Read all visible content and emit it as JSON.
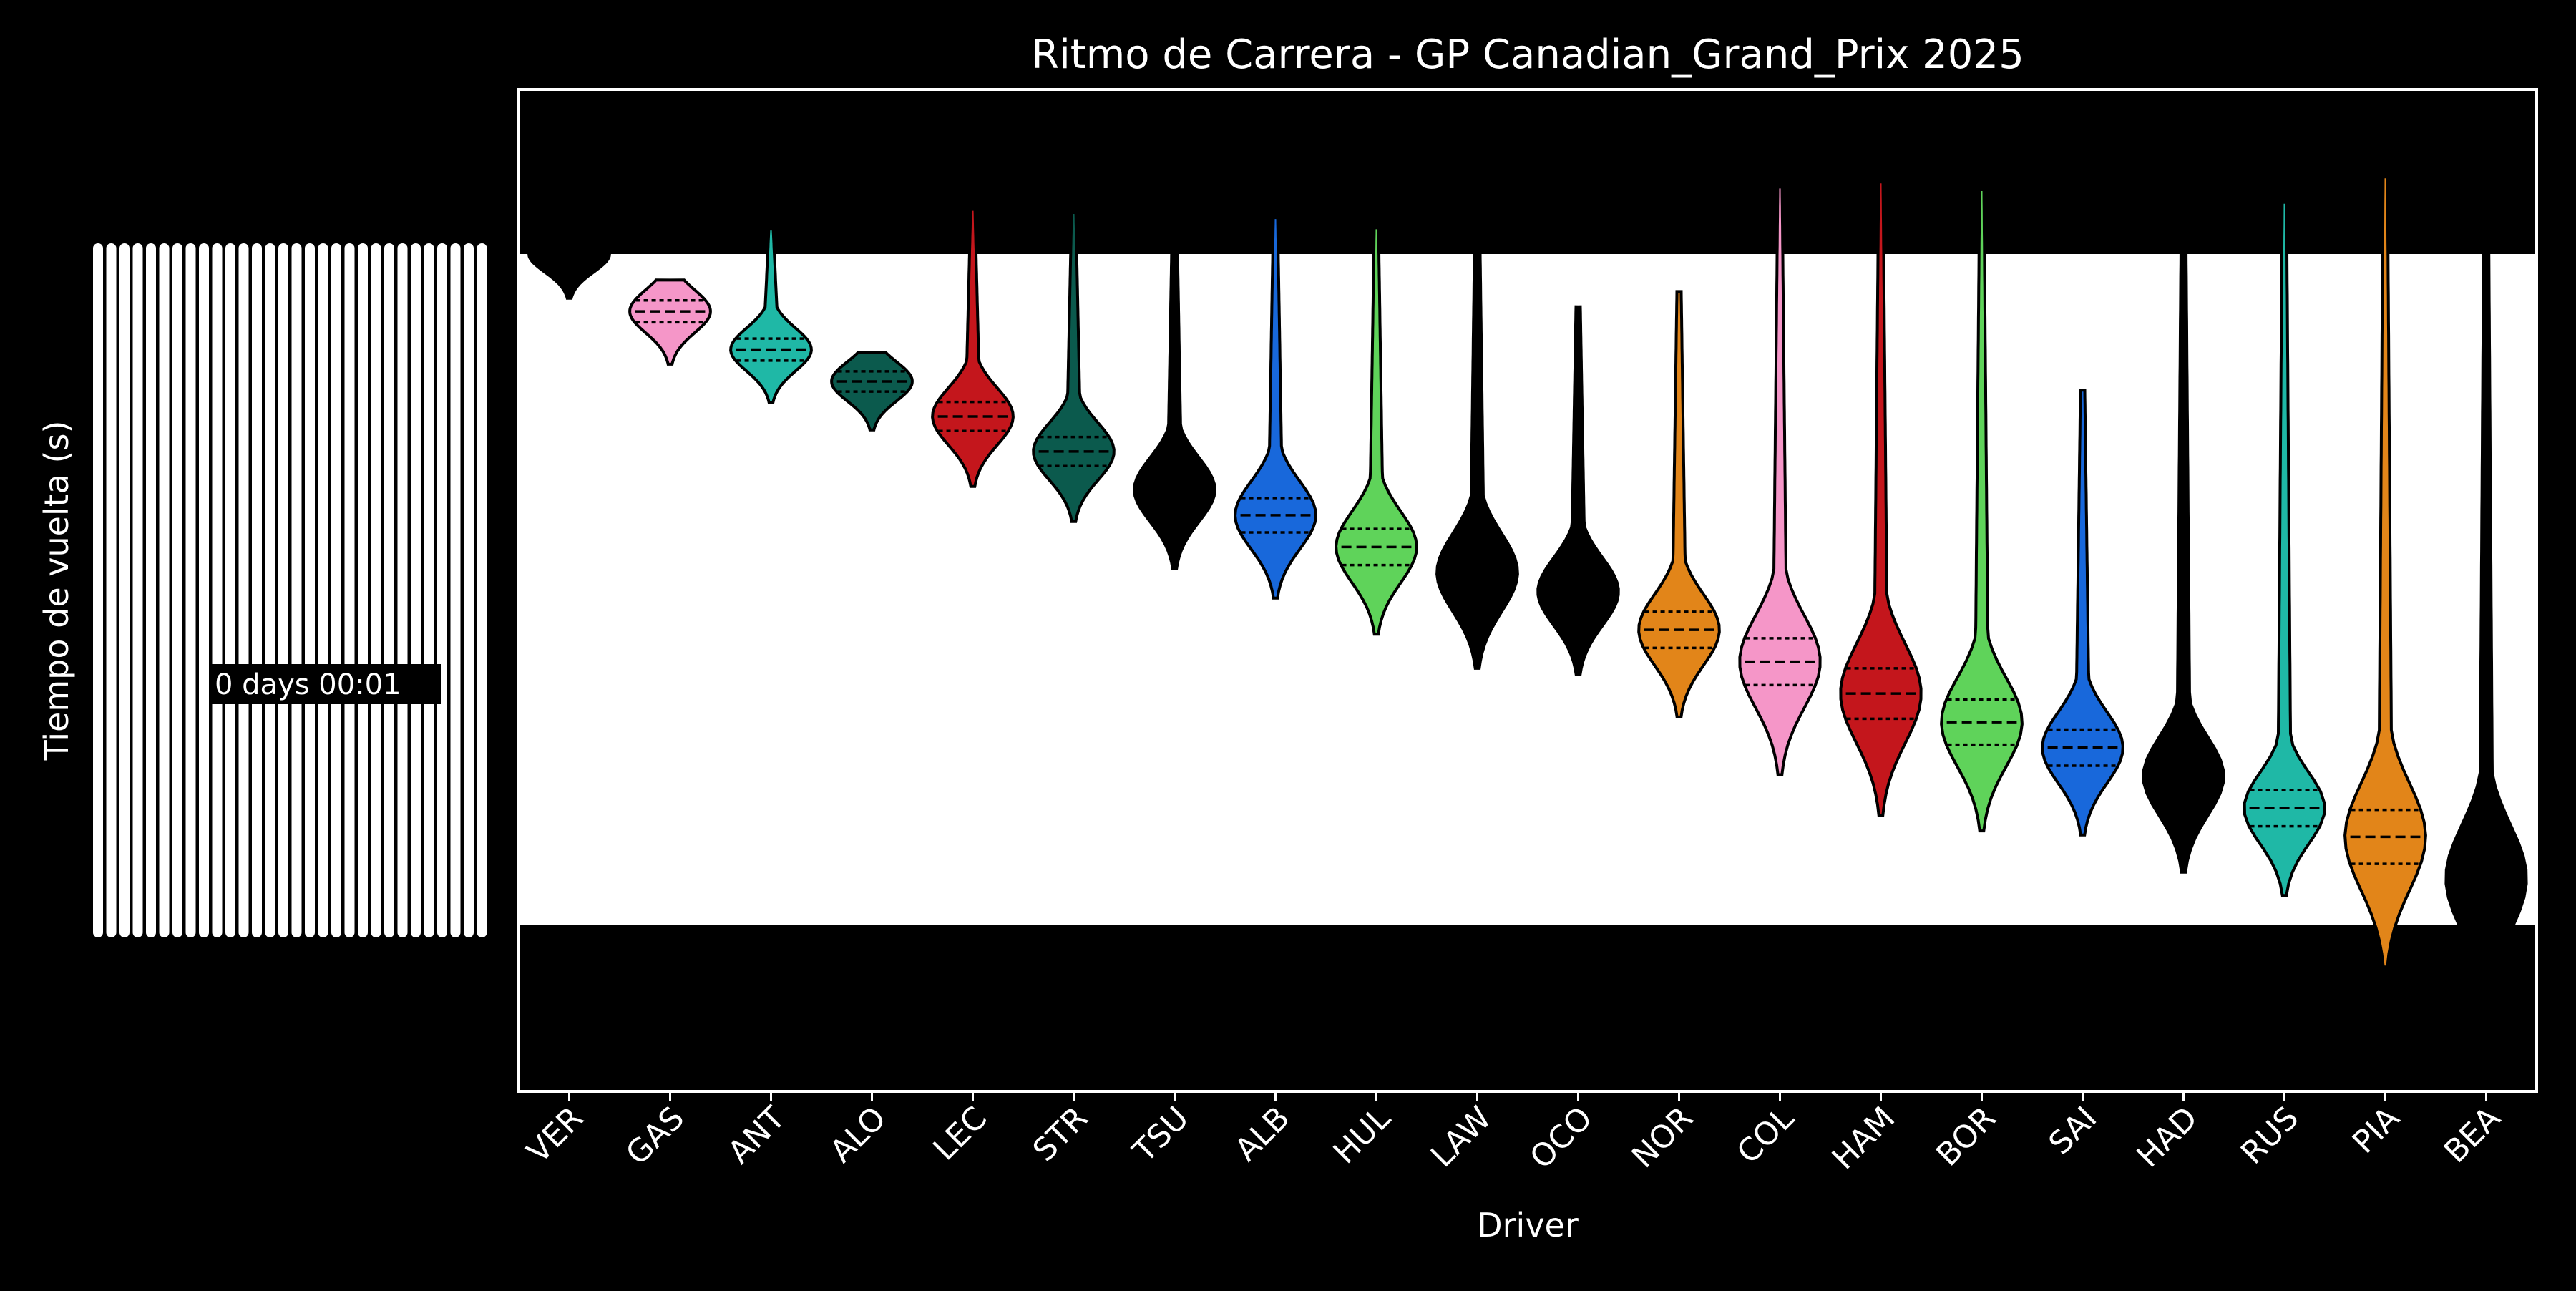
{
  "chart_data": {
    "type": "violin",
    "title": "Ritmo de Carrera - GP Canadian_Grand_Prix 2025",
    "xlabel": "Driver",
    "ylabel": "Tiempo de vuelta (s)",
    "y_tick_note": "0 days 00:01",
    "y_axis_note": "y tick labels rendered as overlapping timedelta strings (illegible)",
    "y_axis_direction": "faster lap times at top",
    "background": "#000000",
    "plot_background": "#ffffff",
    "grid": false,
    "legend": "none",
    "drivers": [
      {
        "name": "VER",
        "color": "#000000",
        "median_rank": 0.0,
        "spread": 0.02,
        "tail": 0.0,
        "inner": false
      },
      {
        "name": "GAS",
        "color": "#f596c8",
        "median_rank": 0.09,
        "spread": 0.03,
        "tail": 0.0,
        "inner": true
      },
      {
        "name": "ANT",
        "color": "#1fb8a6",
        "median_rank": 0.15,
        "spread": 0.03,
        "tail": 0.14,
        "inner": true
      },
      {
        "name": "ALO",
        "color": "#0b5a4d",
        "median_rank": 0.2,
        "spread": 0.025,
        "tail": 0.0,
        "inner": true
      },
      {
        "name": "LEC",
        "color": "#c4161c",
        "median_rank": 0.255,
        "spread": 0.05,
        "tail": 0.26,
        "inner": true
      },
      {
        "name": "STR",
        "color": "#0b5a4d",
        "median_rank": 0.31,
        "spread": 0.05,
        "tail": 0.31,
        "inner": true
      },
      {
        "name": "TSU",
        "color": "#000000",
        "median_rank": 0.37,
        "spread": 0.06,
        "tail": 0.37,
        "inner": false
      },
      {
        "name": "ALB",
        "color": "#1868db",
        "median_rank": 0.41,
        "spread": 0.065,
        "tail": 0.39,
        "inner": true
      },
      {
        "name": "HUL",
        "color": "#5fd35a",
        "median_rank": 0.46,
        "spread": 0.07,
        "tail": 0.42,
        "inner": true
      },
      {
        "name": "LAW",
        "color": "#000000",
        "median_rank": 0.5,
        "spread": 0.08,
        "tail": 0.5,
        "inner": false
      },
      {
        "name": "OCO",
        "color": "#000000",
        "median_rank": 0.53,
        "spread": 0.065,
        "tail": 0.37,
        "inner": false
      },
      {
        "name": "NOR",
        "color": "#e28519",
        "median_rank": 0.59,
        "spread": 0.07,
        "tail": 0.45,
        "inner": true
      },
      {
        "name": "COL",
        "color": "#f596c8",
        "median_rank": 0.64,
        "spread": 0.1,
        "tail": 0.64,
        "inner": true
      },
      {
        "name": "HAM",
        "color": "#c4161c",
        "median_rank": 0.69,
        "spread": 0.11,
        "tail": 0.69,
        "inner": true
      },
      {
        "name": "BOR",
        "color": "#5fd35a",
        "median_rank": 0.735,
        "spread": 0.095,
        "tail": 0.735,
        "inner": true
      },
      {
        "name": "SAI",
        "color": "#1868db",
        "median_rank": 0.775,
        "spread": 0.07,
        "tail": 0.48,
        "inner": true
      },
      {
        "name": "HAD",
        "color": "#000000",
        "median_rank": 0.82,
        "spread": 0.08,
        "tail": 0.82,
        "inner": false
      },
      {
        "name": "RUS",
        "color": "#1fb8a6",
        "median_rank": 0.87,
        "spread": 0.07,
        "tail": 0.87,
        "inner": true
      },
      {
        "name": "PIA",
        "color": "#e28519",
        "median_rank": 0.915,
        "spread": 0.12,
        "tail": 0.915,
        "inner": true
      },
      {
        "name": "BEA",
        "color": "#000000",
        "median_rank": 0.98,
        "spread": 0.12,
        "tail": 0.98,
        "inner": false
      }
    ]
  }
}
